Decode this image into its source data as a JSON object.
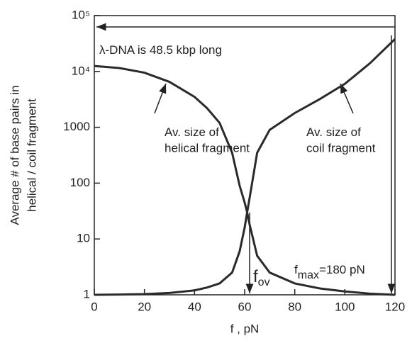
{
  "chart_data": {
    "type": "line",
    "x_label": "f , pN",
    "y_label": [
      "Average # of base pairs in",
      "helical / coil fragment"
    ],
    "x": [
      0,
      10,
      20,
      30,
      40,
      45,
      50,
      55,
      58,
      60,
      61,
      62,
      65,
      70,
      80,
      90,
      100,
      110,
      120
    ],
    "series": [
      {
        "color": "#2a2a2a",
        "values": [
          12500,
          11500,
          9500,
          6500,
          3500,
          2200,
          1200,
          350,
          90,
          45,
          30,
          18,
          5,
          2.5,
          1.6,
          1.3,
          1.15,
          1.05,
          1
        ]
      },
      {
        "color": "#2a2a2a",
        "values": [
          1,
          1.01,
          1.03,
          1.08,
          1.2,
          1.35,
          1.6,
          2.5,
          6,
          16,
          30,
          55,
          350,
          900,
          1800,
          3200,
          6000,
          14000,
          38000
        ]
      }
    ],
    "xlim": [
      0,
      120
    ],
    "xticks": [
      0,
      20,
      40,
      60,
      80,
      100,
      120
    ],
    "ylim": [
      1,
      100000
    ],
    "yscale": "log",
    "yticks": [
      1,
      10,
      100,
      1000,
      {
        "value": 10000,
        "label": "10⁴"
      },
      {
        "value": 100000,
        "label": "10⁵"
      }
    ],
    "annotations": [
      {
        "text": "λ-DNA is 48.5 kbp long"
      },
      {
        "text": "Av. size of",
        "text2": "helical fragment"
      },
      {
        "text": "Av. size of",
        "text2": "coil fragment"
      },
      {
        "text": "f",
        "sub": "ov"
      },
      {
        "text": "f",
        "sub": "max",
        "rest": "=180 pN"
      }
    ]
  }
}
